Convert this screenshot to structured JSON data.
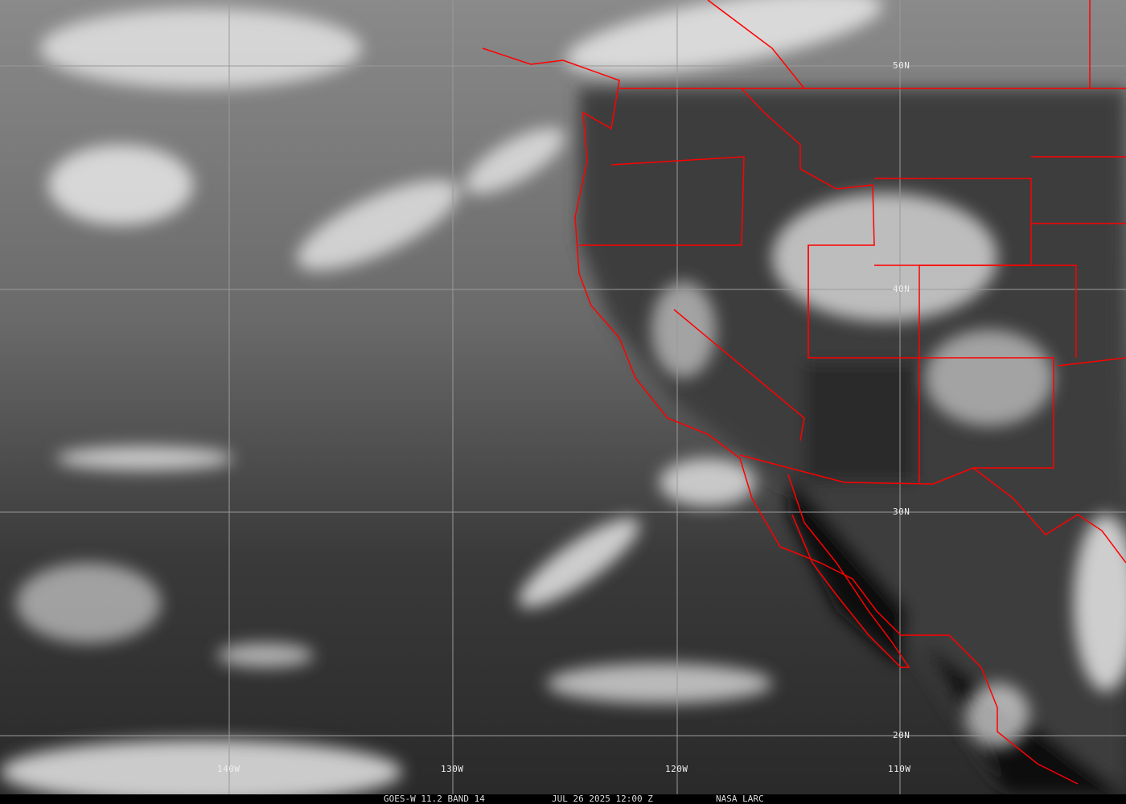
{
  "caption": {
    "satellite": "GOES-W 11.2 BAND 14",
    "datetime": "JUL 26 2025 12:00 Z",
    "source": "NASA LARC"
  },
  "grid": {
    "lat_labels": [
      "50N",
      "40N",
      "30N",
      "20N"
    ],
    "lon_labels": [
      "140W",
      "130W",
      "120W",
      "110W"
    ]
  },
  "colors": {
    "boundaries": "#ff0000",
    "grid": "#9a9a9a"
  }
}
